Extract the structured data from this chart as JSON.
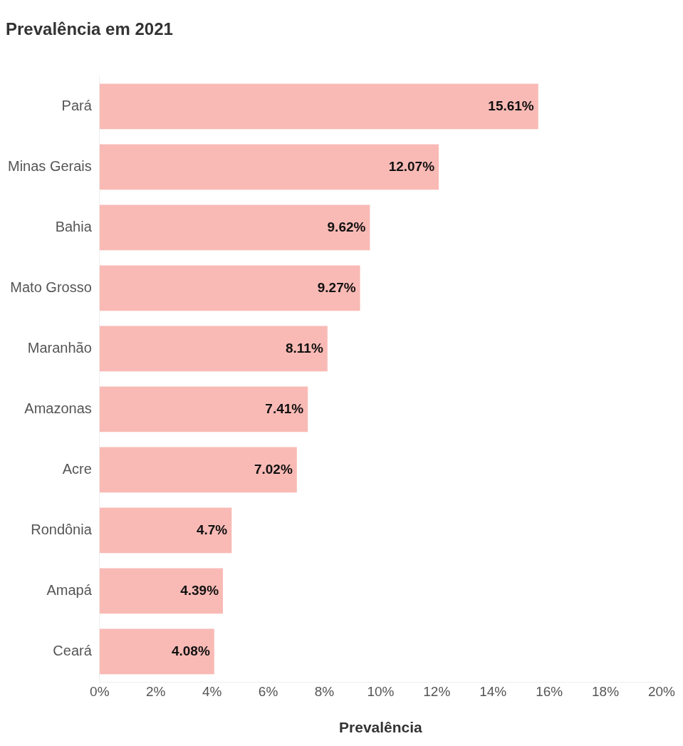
{
  "chart_data": {
    "type": "bar",
    "orientation": "horizontal",
    "title": "Prevalência em 2021",
    "xlabel": "Prevalência",
    "categories": [
      "Pará",
      "Minas Gerais",
      "Bahia",
      "Mato Grosso",
      "Maranhão",
      "Amazonas",
      "Acre",
      "Rondônia",
      "Amapá",
      "Ceará"
    ],
    "values": [
      15.61,
      12.07,
      9.62,
      9.27,
      8.11,
      7.41,
      7.02,
      4.7,
      4.39,
      4.08
    ],
    "value_labels": [
      "15.61%",
      "12.07%",
      "9.62%",
      "9.27%",
      "8.11%",
      "7.41%",
      "7.02%",
      "4.7%",
      "4.39%",
      "4.08%"
    ],
    "color": "#f9bab5",
    "xlim": [
      0,
      20
    ],
    "xticks": [
      {
        "value": 0,
        "label": "0%"
      },
      {
        "value": 2,
        "label": "2%"
      },
      {
        "value": 4,
        "label": "4%"
      },
      {
        "value": 6,
        "label": "6%"
      },
      {
        "value": 8,
        "label": "8%"
      },
      {
        "value": 10,
        "label": "10%"
      },
      {
        "value": 12,
        "label": "12%"
      },
      {
        "value": 14,
        "label": "14%"
      },
      {
        "value": 16,
        "label": "16%"
      },
      {
        "value": 18,
        "label": "18%"
      },
      {
        "value": 20,
        "label": "20%"
      }
    ]
  }
}
